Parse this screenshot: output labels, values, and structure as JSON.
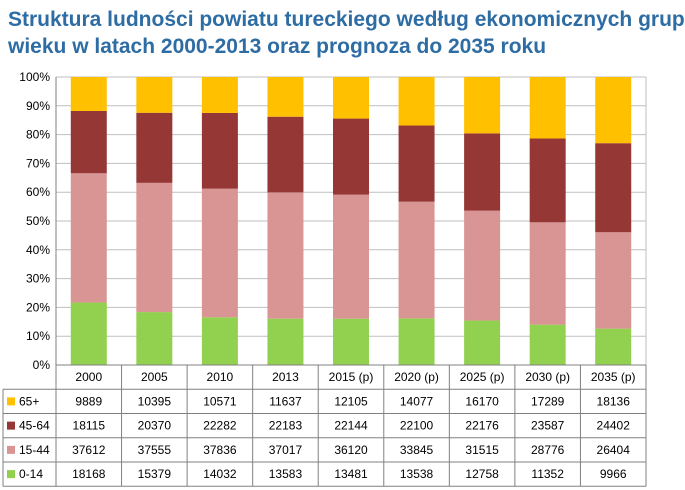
{
  "title_lines": [
    "Struktura ludności powiatu tureckiego według ekonomicznych grup",
    "wieku w latach 2000-2013 oraz prognoza do 2035 roku"
  ],
  "chart_data": {
    "type": "bar",
    "stacked": "percent",
    "title": "Struktura ludności powiatu tureckiego według ekonomicznych grup wieku w latach 2000-2013 oraz prognoza do 2035 roku",
    "categories": [
      "2000",
      "2005",
      "2010",
      "2013",
      "2015 (p)",
      "2020 (p)",
      "2025 (p)",
      "2030 (p)",
      "2035 (p)"
    ],
    "y_ticks": [
      "0%",
      "10%",
      "20%",
      "30%",
      "40%",
      "50%",
      "60%",
      "70%",
      "80%",
      "90%",
      "100%"
    ],
    "ylim": [
      0,
      100
    ],
    "grid": true,
    "legend_placement": "data-table-left",
    "series": [
      {
        "name": "0-14",
        "color": "#92d050",
        "values": [
          18168,
          15379,
          14032,
          13583,
          13481,
          13538,
          12758,
          11352,
          9966
        ]
      },
      {
        "name": "15-44",
        "color": "#d99594",
        "values": [
          37612,
          37555,
          37836,
          37017,
          36120,
          33845,
          31515,
          28776,
          26404
        ]
      },
      {
        "name": "45-64",
        "color": "#953735",
        "values": [
          18115,
          20370,
          22282,
          22183,
          22144,
          22100,
          22176,
          23587,
          24402
        ]
      },
      {
        "name": "65+",
        "color": "#ffc000",
        "values": [
          9889,
          10395,
          10571,
          11637,
          12105,
          14077,
          16170,
          17289,
          18136
        ]
      }
    ],
    "table_row_order": [
      "65+",
      "45-64",
      "15-44",
      "0-14"
    ]
  }
}
